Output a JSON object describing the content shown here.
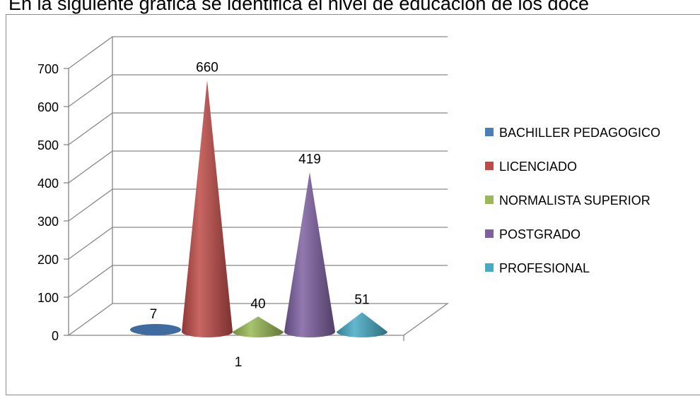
{
  "page": {
    "heading": "En la siguiente gráfica  se identifica el nivel de educación de los doce"
  },
  "chart_data": {
    "type": "bar",
    "bar_shape": "3d-cone",
    "categories": [
      "1"
    ],
    "series": [
      {
        "name": "BACHILLER PEDAGOGICO",
        "values": [
          7
        ],
        "color": "#4a7ebb"
      },
      {
        "name": "LICENCIADO",
        "values": [
          660
        ],
        "color": "#be4b48"
      },
      {
        "name": "NORMALISTA SUPERIOR",
        "values": [
          40
        ],
        "color": "#98b954"
      },
      {
        "name": "POSTGRADO",
        "values": [
          419
        ],
        "color": "#7d60a0"
      },
      {
        "name": "PROFESIONAL",
        "values": [
          51
        ],
        "color": "#46aac5"
      }
    ],
    "y_ticks": [
      "0",
      "100",
      "200",
      "300",
      "400",
      "500",
      "600",
      "700"
    ],
    "ylim": [
      0,
      700
    ],
    "grid": true,
    "data_labels": [
      "7",
      "660",
      "40",
      "419",
      "51"
    ],
    "legend_position": "right",
    "title": "",
    "xlabel": "",
    "ylabel": ""
  }
}
